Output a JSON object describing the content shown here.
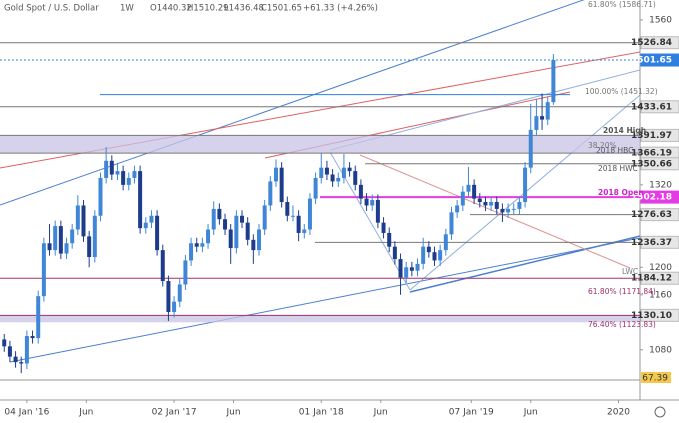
{
  "chart_data": {
    "type": "candlestick",
    "title": "Gold Spot / U.S. Dollar",
    "interval": "1W",
    "header_values": [
      "O1440.32",
      "H1510.29",
      "L1436.48",
      "C1501.65",
      "+61.33 (+4.26%)"
    ],
    "up_color": "#3f86d6",
    "down_color": "#1d3c8c",
    "xlim": [
      -9.5,
      216.6
    ],
    "ylim": [
      1036,
      1589
    ],
    "xticks": [
      {
        "value": 0,
        "label": "04 Jan '16"
      },
      {
        "value": 21,
        "label": "Jun"
      },
      {
        "value": 52,
        "label": "02 Jan '17"
      },
      {
        "value": 73,
        "label": "Jun"
      },
      {
        "value": 104,
        "label": "01 Jan '18"
      },
      {
        "value": 125,
        "label": "Jun"
      },
      {
        "value": 157,
        "label": "07 Jan '19"
      },
      {
        "value": 178,
        "label": "Jun"
      },
      {
        "value": 209,
        "label": "2020"
      }
    ],
    "yticks": [
      1080,
      1160,
      1200,
      1320,
      1560
    ],
    "levels": [
      1526.84,
      1501.65,
      1433.61,
      1391.97,
      1366.19,
      1350.66,
      1302.18,
      1276.63,
      1236.37,
      1184.12,
      {
        "value": 1130.1,
        "label": "1130.10"
      }
    ],
    "level_colors": [
      "#777777",
      "#2f7fe0",
      "#777777",
      "#777777",
      "#777777",
      "#777777",
      "#e43ce4",
      "#777777",
      "#777777",
      "#a0306a",
      "#a0306a"
    ],
    "annotations": [
      "61.80% (1586.71)",
      "100.00% (1451.32)",
      "2014 High",
      "38.20%",
      "2018 HBC",
      "2018 HWC",
      "2018 Open",
      "LWC",
      "61.80% (1171.84)",
      "76.40% (1123.83)"
    ],
    "rsi_label": "67.39",
    "candles": [
      [
        -8,
        1095,
        1103,
        1077,
        1085
      ],
      [
        -6,
        1085,
        1093,
        1062,
        1070
      ],
      [
        -4,
        1070,
        1078,
        1054,
        1062
      ],
      [
        -2,
        1062,
        1070,
        1046,
        1060
      ],
      [
        0,
        1060,
        1108,
        1052,
        1100
      ],
      [
        2,
        1100,
        1108,
        1089,
        1097
      ],
      [
        4,
        1097,
        1166,
        1089,
        1158
      ],
      [
        6,
        1158,
        1243,
        1150,
        1235
      ],
      [
        8,
        1235,
        1263,
        1217,
        1225
      ],
      [
        10,
        1225,
        1268,
        1217,
        1260
      ],
      [
        12,
        1260,
        1268,
        1212,
        1220
      ],
      [
        14,
        1220,
        1243,
        1212,
        1235
      ],
      [
        16,
        1235,
        1263,
        1227,
        1255
      ],
      [
        18,
        1255,
        1305,
        1247,
        1290
      ],
      [
        20,
        1290,
        1298,
        1237,
        1245
      ],
      [
        22,
        1245,
        1253,
        1200,
        1215
      ],
      [
        24,
        1215,
        1283,
        1207,
        1275
      ],
      [
        26,
        1275,
        1338,
        1267,
        1330
      ],
      [
        28,
        1330,
        1375,
        1322,
        1355
      ],
      [
        30,
        1355,
        1363,
        1327,
        1335
      ],
      [
        32,
        1335,
        1352,
        1327,
        1340
      ],
      [
        34,
        1340,
        1348,
        1312,
        1320
      ],
      [
        36,
        1320,
        1338,
        1312,
        1330
      ],
      [
        38,
        1330,
        1348,
        1322,
        1340
      ],
      [
        40,
        1340,
        1348,
        1249,
        1257
      ],
      [
        42,
        1257,
        1273,
        1249,
        1265
      ],
      [
        44,
        1265,
        1283,
        1257,
        1275
      ],
      [
        46,
        1275,
        1283,
        1217,
        1225
      ],
      [
        48,
        1225,
        1233,
        1172,
        1180
      ],
      [
        50,
        1180,
        1188,
        1122,
        1135
      ],
      [
        52,
        1135,
        1158,
        1127,
        1150
      ],
      [
        54,
        1150,
        1183,
        1142,
        1175
      ],
      [
        56,
        1175,
        1218,
        1167,
        1210
      ],
      [
        58,
        1210,
        1243,
        1202,
        1235
      ],
      [
        60,
        1235,
        1243,
        1222,
        1230
      ],
      [
        62,
        1230,
        1243,
        1222,
        1235
      ],
      [
        64,
        1235,
        1263,
        1227,
        1255
      ],
      [
        66,
        1255,
        1296,
        1247,
        1285
      ],
      [
        68,
        1285,
        1293,
        1262,
        1270
      ],
      [
        70,
        1270,
        1278,
        1247,
        1255
      ],
      [
        72,
        1255,
        1263,
        1205,
        1228
      ],
      [
        74,
        1228,
        1283,
        1220,
        1275
      ],
      [
        76,
        1275,
        1283,
        1257,
        1265
      ],
      [
        78,
        1265,
        1273,
        1232,
        1240
      ],
      [
        80,
        1240,
        1248,
        1205,
        1225
      ],
      [
        82,
        1225,
        1263,
        1217,
        1255
      ],
      [
        84,
        1255,
        1298,
        1247,
        1290
      ],
      [
        86,
        1290,
        1333,
        1282,
        1325
      ],
      [
        88,
        1325,
        1357,
        1317,
        1345
      ],
      [
        90,
        1345,
        1353,
        1287,
        1295
      ],
      [
        92,
        1295,
        1303,
        1267,
        1275
      ],
      [
        94,
        1275,
        1290,
        1267,
        1275
      ],
      [
        96,
        1275,
        1283,
        1238,
        1250
      ],
      [
        98,
        1250,
        1263,
        1242,
        1255
      ],
      [
        100,
        1255,
        1308,
        1247,
        1300
      ],
      [
        102,
        1300,
        1338,
        1292,
        1330
      ],
      [
        104,
        1330,
        1366,
        1322,
        1345
      ],
      [
        106,
        1345,
        1355,
        1327,
        1335
      ],
      [
        108,
        1335,
        1343,
        1317,
        1325
      ],
      [
        110,
        1325,
        1338,
        1317,
        1330
      ],
      [
        112,
        1330,
        1365,
        1322,
        1345
      ],
      [
        114,
        1345,
        1353,
        1332,
        1340
      ],
      [
        116,
        1340,
        1348,
        1312,
        1320
      ],
      [
        118,
        1320,
        1328,
        1292,
        1300
      ],
      [
        120,
        1300,
        1308,
        1282,
        1290
      ],
      [
        122,
        1290,
        1306,
        1282,
        1298
      ],
      [
        124,
        1298,
        1306,
        1257,
        1265
      ],
      [
        126,
        1265,
        1273,
        1242,
        1250
      ],
      [
        128,
        1250,
        1258,
        1222,
        1230
      ],
      [
        130,
        1230,
        1238,
        1204,
        1212
      ],
      [
        132,
        1212,
        1220,
        1160,
        1185
      ],
      [
        134,
        1185,
        1208,
        1177,
        1200
      ],
      [
        136,
        1200,
        1208,
        1187,
        1195
      ],
      [
        138,
        1195,
        1213,
        1187,
        1205
      ],
      [
        140,
        1205,
        1243,
        1197,
        1230
      ],
      [
        142,
        1230,
        1238,
        1214,
        1222
      ],
      [
        144,
        1222,
        1230,
        1202,
        1210
      ],
      [
        146,
        1210,
        1233,
        1202,
        1225
      ],
      [
        148,
        1225,
        1256,
        1217,
        1248
      ],
      [
        150,
        1248,
        1288,
        1240,
        1280
      ],
      [
        152,
        1280,
        1298,
        1272,
        1290
      ],
      [
        154,
        1290,
        1318,
        1282,
        1310
      ],
      [
        156,
        1310,
        1346,
        1302,
        1320
      ],
      [
        158,
        1320,
        1328,
        1292,
        1300
      ],
      [
        160,
        1300,
        1308,
        1287,
        1295
      ],
      [
        162,
        1295,
        1303,
        1282,
        1290
      ],
      [
        164,
        1290,
        1303,
        1282,
        1295
      ],
      [
        166,
        1295,
        1303,
        1277,
        1285
      ],
      [
        168,
        1285,
        1293,
        1266,
        1280
      ],
      [
        170,
        1280,
        1293,
        1272,
        1285
      ],
      [
        172,
        1285,
        1293,
        1277,
        1285
      ],
      [
        174,
        1285,
        1303,
        1277,
        1295
      ],
      [
        176,
        1295,
        1353,
        1287,
        1345
      ],
      [
        178,
        1345,
        1438,
        1337,
        1400
      ],
      [
        180,
        1400,
        1445,
        1392,
        1420
      ],
      [
        182,
        1420,
        1453,
        1400,
        1415
      ],
      [
        184,
        1415,
        1448,
        1407,
        1440.32
      ],
      [
        186,
        1440.32,
        1510.29,
        1436.48,
        1501.65
      ]
    ]
  }
}
